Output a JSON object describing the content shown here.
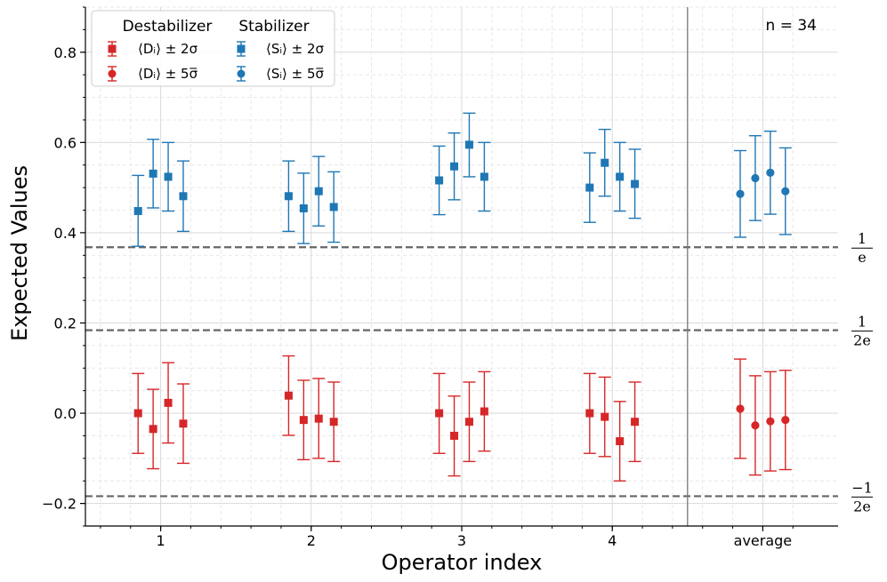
{
  "chart_data": {
    "type": "scatter",
    "xlabel": "Operator index",
    "ylabel": "Expected Values",
    "categories": [
      "1",
      "2",
      "3",
      "4",
      "average"
    ],
    "ylim": [
      -0.25,
      0.9
    ],
    "yticks": [
      -0.2,
      0.0,
      0.2,
      0.4,
      0.6,
      0.8
    ],
    "ytick_labels": [
      "−0.2",
      "0.0",
      "0.2",
      "0.4",
      "0.6",
      "0.8"
    ],
    "grid": true,
    "legend_position": "top-left",
    "annotation": "n = 34",
    "legend": {
      "group_titles": [
        "Destabilizer",
        "Stabilizer"
      ],
      "entries": [
        {
          "label": "⟨Dᵢ⟩ ± 2σ",
          "group": "Destabilizer",
          "marker": "square"
        },
        {
          "label": "⟨Dᵢ⟩ ± 5σ̅",
          "group": "Destabilizer",
          "marker": "circle"
        },
        {
          "label": "⟨Sᵢ⟩ ± 2σ",
          "group": "Stabilizer",
          "marker": "square"
        },
        {
          "label": "⟨Sᵢ⟩ ± 5σ̅",
          "group": "Stabilizer",
          "marker": "circle"
        }
      ]
    },
    "reference_lines": [
      {
        "value": 0.3679,
        "numerator": "1",
        "denominator": "e"
      },
      {
        "value": 0.1839,
        "numerator": "1",
        "denominator": "2e"
      },
      {
        "value": -0.1839,
        "numerator": "−1",
        "denominator": "2e"
      }
    ],
    "series": [
      {
        "name": "Destabilizer",
        "color": "#d62728",
        "groups": [
          {
            "category": "1",
            "marker": "square",
            "points": [
              [
                0.0,
                -0.089,
                0.088
              ],
              [
                -0.035,
                -0.123,
                0.053
              ],
              [
                0.023,
                -0.066,
                0.112
              ],
              [
                -0.023,
                -0.111,
                0.065
              ]
            ]
          },
          {
            "category": "2",
            "marker": "square",
            "points": [
              [
                0.039,
                -0.049,
                0.127
              ],
              [
                -0.015,
                -0.103,
                0.073
              ],
              [
                -0.012,
                -0.1,
                0.077
              ],
              [
                -0.019,
                -0.107,
                0.069
              ]
            ]
          },
          {
            "category": "3",
            "marker": "square",
            "points": [
              [
                0.0,
                -0.089,
                0.088
              ],
              [
                -0.05,
                -0.139,
                0.038
              ],
              [
                -0.019,
                -0.107,
                0.069
              ],
              [
                0.004,
                -0.084,
                0.092
              ]
            ]
          },
          {
            "category": "4",
            "marker": "square",
            "points": [
              [
                0.0,
                -0.089,
                0.088
              ],
              [
                -0.008,
                -0.096,
                0.08
              ],
              [
                -0.062,
                -0.15,
                0.026
              ],
              [
                -0.019,
                -0.107,
                0.069
              ]
            ]
          },
          {
            "category": "average",
            "marker": "circle",
            "points": [
              [
                0.01,
                -0.1,
                0.12
              ],
              [
                -0.027,
                -0.137,
                0.083
              ],
              [
                -0.018,
                -0.128,
                0.092
              ],
              [
                -0.015,
                -0.125,
                0.095
              ]
            ]
          }
        ]
      },
      {
        "name": "Stabilizer",
        "color": "#1f77b4",
        "groups": [
          {
            "category": "1",
            "marker": "square",
            "points": [
              [
                0.448,
                0.37,
                0.527
              ],
              [
                0.531,
                0.455,
                0.607
              ],
              [
                0.524,
                0.448,
                0.6
              ],
              [
                0.481,
                0.403,
                0.559
              ]
            ]
          },
          {
            "category": "2",
            "marker": "square",
            "points": [
              [
                0.481,
                0.403,
                0.559
              ],
              [
                0.454,
                0.376,
                0.532
              ],
              [
                0.492,
                0.415,
                0.569
              ],
              [
                0.457,
                0.379,
                0.535
              ]
            ]
          },
          {
            "category": "3",
            "marker": "square",
            "points": [
              [
                0.516,
                0.44,
                0.592
              ],
              [
                0.547,
                0.473,
                0.621
              ],
              [
                0.595,
                0.524,
                0.665
              ],
              [
                0.524,
                0.448,
                0.6
              ]
            ]
          },
          {
            "category": "4",
            "marker": "square",
            "points": [
              [
                0.5,
                0.423,
                0.577
              ],
              [
                0.555,
                0.481,
                0.629
              ],
              [
                0.524,
                0.448,
                0.6
              ],
              [
                0.508,
                0.432,
                0.585
              ]
            ]
          },
          {
            "category": "average",
            "marker": "circle",
            "points": [
              [
                0.486,
                0.39,
                0.582
              ],
              [
                0.521,
                0.427,
                0.615
              ],
              [
                0.533,
                0.441,
                0.625
              ],
              [
                0.492,
                0.396,
                0.588
              ]
            ]
          }
        ]
      }
    ]
  }
}
